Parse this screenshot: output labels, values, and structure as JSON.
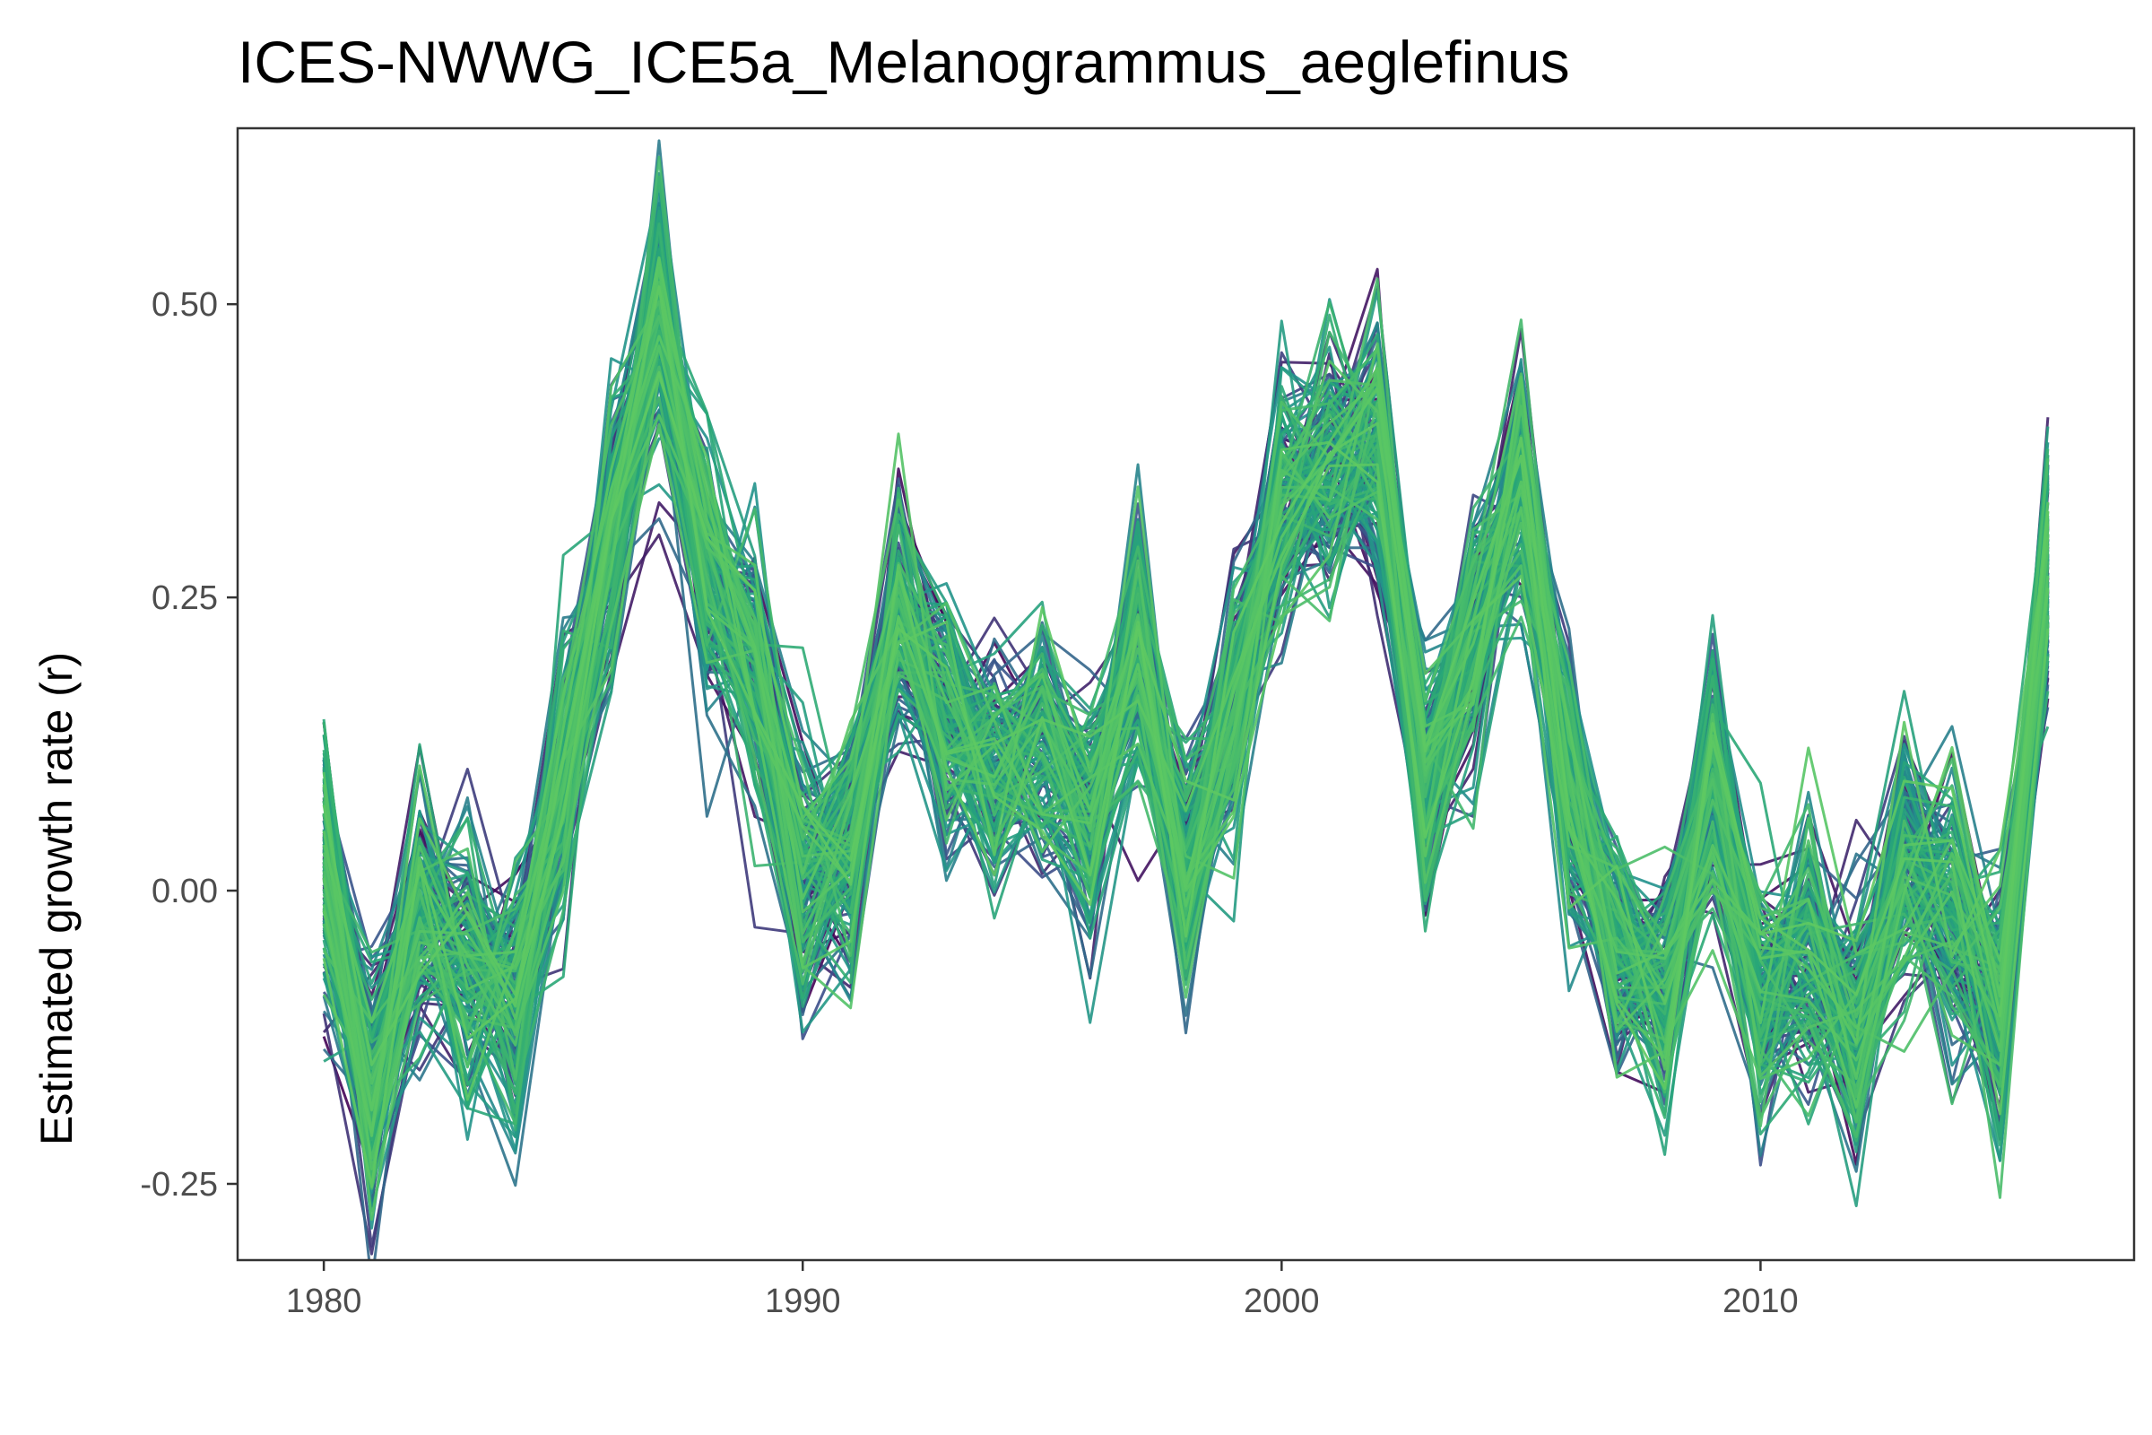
{
  "chart_data": {
    "type": "line",
    "title": "ICES-NWWG_ICE5a_Melanogrammus_aeglefinus",
    "xlabel": "",
    "ylabel": "Estimated growth rate (r)",
    "xlim": [
      1978.2,
      2017.8
    ],
    "ylim": [
      -0.315,
      0.65
    ],
    "x_ticks": [
      1980,
      1990,
      2000,
      2010
    ],
    "x_tick_labels": [
      "1980",
      "1990",
      "2000",
      "2010"
    ],
    "y_ticks": [
      -0.25,
      0.0,
      0.25,
      0.5
    ],
    "y_tick_labels": [
      "-0.25",
      "0.00",
      "0.25",
      "0.50"
    ],
    "grid": false,
    "legend": "none",
    "x": [
      1980,
      1981,
      1982,
      1983,
      1984,
      1985,
      1986,
      1987,
      1988,
      1989,
      1990,
      1991,
      1992,
      1993,
      1994,
      1995,
      1996,
      1997,
      1998,
      1999,
      2000,
      2001,
      2002,
      2003,
      2004,
      2005,
      2006,
      2007,
      2008,
      2009,
      2010,
      2011,
      2012,
      2013,
      2014,
      2015,
      2016
    ],
    "mean": [
      0.02,
      -0.17,
      -0.03,
      -0.07,
      -0.09,
      0.09,
      0.3,
      0.49,
      0.27,
      0.19,
      0.01,
      0.03,
      0.24,
      0.15,
      0.1,
      0.13,
      0.07,
      0.2,
      0.01,
      0.16,
      0.33,
      0.36,
      0.38,
      0.09,
      0.22,
      0.35,
      0.08,
      -0.05,
      -0.09,
      0.09,
      -0.09,
      -0.06,
      -0.12,
      0.02,
      -0.02,
      -0.09,
      0.28
    ],
    "ensemble_size": 160,
    "spread": 0.055,
    "color_scale": [
      "#440154",
      "#3b528b",
      "#21918c",
      "#2aa876",
      "#5ec962"
    ]
  }
}
